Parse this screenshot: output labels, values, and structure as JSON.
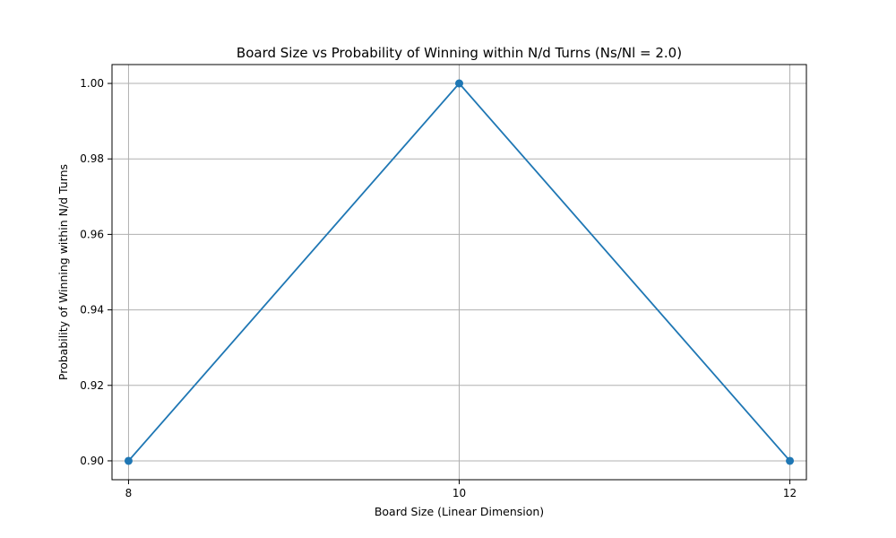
{
  "chart_data": {
    "type": "line",
    "title": "Board Size vs Probability of Winning within N/d Turns (Ns/Nl = 2.0)",
    "xlabel": "Board Size (Linear Dimension)",
    "ylabel": "Probability of Winning within N/d Turns",
    "x": [
      8,
      10,
      12
    ],
    "series": [
      {
        "values": [
          0.9,
          1.0,
          0.9
        ],
        "color": "#1f77b4"
      }
    ],
    "xticks": [
      8,
      10,
      12
    ],
    "xtick_labels": [
      "8",
      "10",
      "12"
    ],
    "yticks": [
      0.9,
      0.92,
      0.94,
      0.96,
      0.98,
      1.0
    ],
    "ytick_labels": [
      "0.90",
      "0.92",
      "0.94",
      "0.96",
      "0.98",
      "1.00"
    ],
    "xlim": [
      7.9,
      12.1
    ],
    "ylim": [
      0.895,
      1.005
    ],
    "grid": true,
    "legend": "none"
  }
}
